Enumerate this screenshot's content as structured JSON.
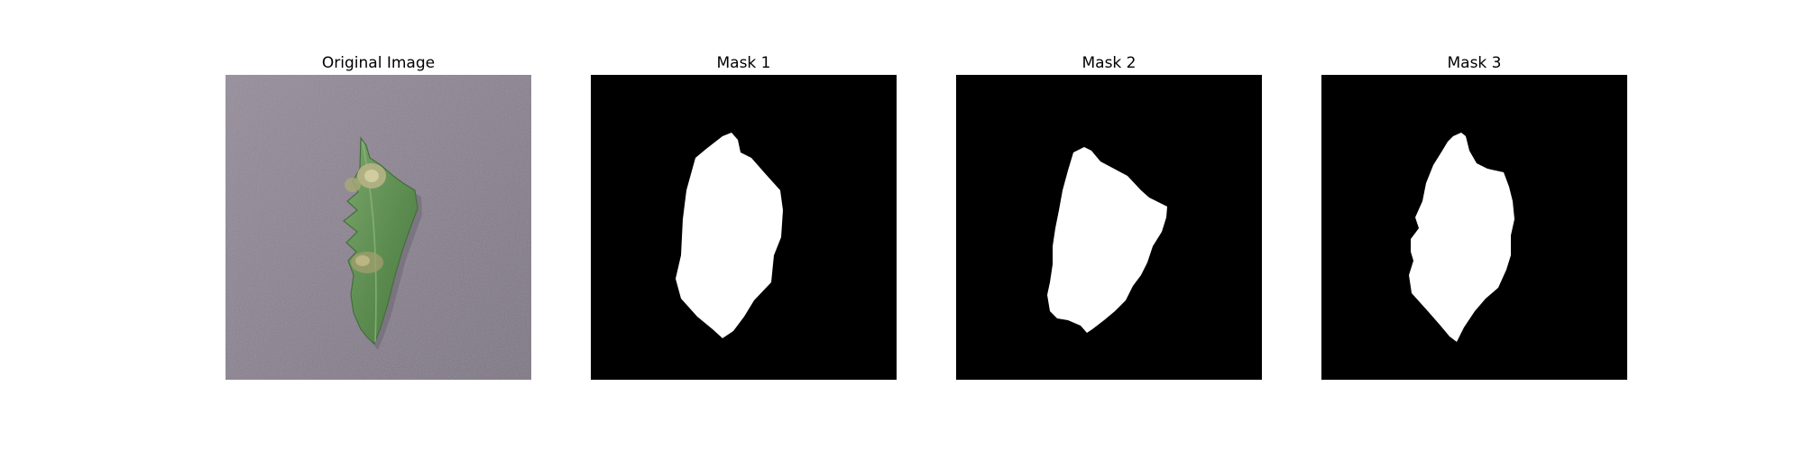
{
  "figure": {
    "panels": [
      {
        "title": "Original Image",
        "kind": "photo",
        "subject": "leaf-photo"
      },
      {
        "title": "Mask 1",
        "kind": "mask",
        "foreground": "#ffffff",
        "background": "#000000"
      },
      {
        "title": "Mask 2",
        "kind": "mask",
        "foreground": "#ffffff",
        "background": "#000000"
      },
      {
        "title": "Mask 3",
        "kind": "mask",
        "foreground": "#ffffff",
        "background": "#000000"
      }
    ],
    "colors": {
      "photo_background": "#8a8290",
      "leaf_green": "#5e8f52",
      "leaf_lesion": "#b7b386"
    }
  }
}
